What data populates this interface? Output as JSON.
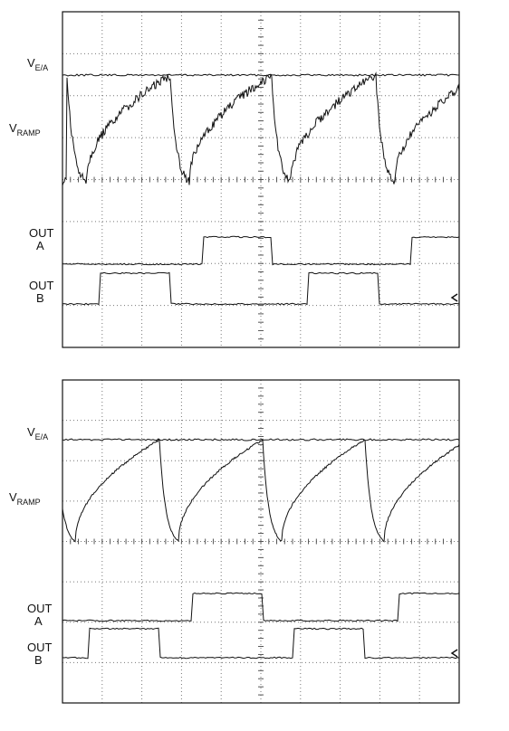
{
  "panels": [
    {
      "labels": {
        "vea": {
          "main": "V",
          "sub": "E/A"
        },
        "vramp": {
          "main": "V",
          "sub": "RAMP"
        },
        "outa": [
          "OUT",
          "A"
        ],
        "outb": [
          "OUT",
          "B"
        ]
      }
    },
    {
      "labels": {
        "vea": {
          "main": "V",
          "sub": "E/A"
        },
        "vramp": {
          "main": "V",
          "sub": "RAMP"
        },
        "outa": [
          "OUT",
          "A"
        ],
        "outb": [
          "OUT",
          "B"
        ]
      }
    }
  ]
}
